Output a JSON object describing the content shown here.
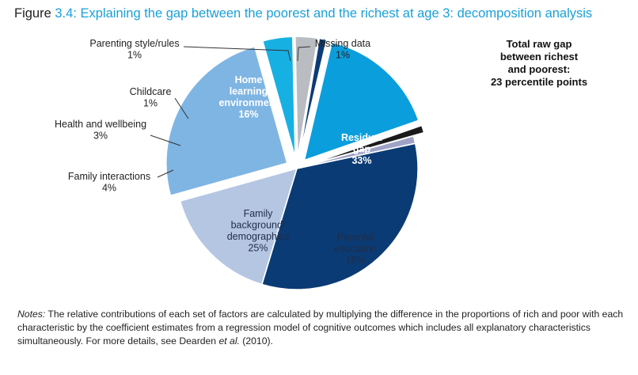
{
  "figure": {
    "label": "Figure",
    "number": "3.4:",
    "title": "Explaining the gap between the poorest and the richest at age 3: decomposition analysis"
  },
  "total_box": [
    "Total raw gap",
    "between richest",
    "and poorest:",
    "23 percentile points"
  ],
  "notes": {
    "label": "Notes:",
    "text1": " The relative contributions of each set of factors are calculated by multiplying the difference in the proportions of rich and poor with each characteristic by the coefficient estimates from a regression model of cognitive outcomes which includes all explanatory characteristics simultaneously. For more details, see Dearden ",
    "et_al": "et al.",
    "text2": " (2010)."
  },
  "colors": {
    "residual": "#0b3b74",
    "parental": "#b4c6e2",
    "background": "#7fb5e3",
    "interactions": "#17b0e3",
    "health": "#b9bcc1",
    "childcare": "#0b3b74",
    "home": "#0b9edc",
    "parenting": "#1a1a1a",
    "missing": "#9ea3c6"
  },
  "chart_data": {
    "type": "pie",
    "title": "Explaining the gap between the poorest and the richest at age 3: decomposition analysis",
    "unit": "%",
    "slices": [
      {
        "key": "residual",
        "label": [
          "Residual",
          "gap"
        ],
        "value": 33,
        "value_label": "33%",
        "color": "#0b3b74",
        "exploded": false
      },
      {
        "key": "parental",
        "label": [
          "Parental",
          "education"
        ],
        "value": 16,
        "value_label": "16%",
        "color": "#b4c6e2",
        "exploded": false
      },
      {
        "key": "background",
        "label": [
          "Family",
          "background/",
          "demographics"
        ],
        "value": 25,
        "value_label": "25%",
        "color": "#7fb5e3",
        "exploded": true
      },
      {
        "key": "interactions",
        "label": [
          "Family interactions"
        ],
        "value": 4,
        "value_label": "4%",
        "color": "#17b0e3",
        "exploded": true
      },
      {
        "key": "health",
        "label": [
          "Health and wellbeing"
        ],
        "value": 3,
        "value_label": "3%",
        "color": "#b9bcc1",
        "exploded": true
      },
      {
        "key": "childcare",
        "label": [
          "Childcare"
        ],
        "value": 1,
        "value_label": "1%",
        "color": "#0b3b74",
        "exploded": true
      },
      {
        "key": "home",
        "label": [
          "Home",
          "learning",
          "environment"
        ],
        "value": 16,
        "value_label": "16%",
        "color": "#0b9edc",
        "exploded": true
      },
      {
        "key": "parenting",
        "label": [
          "Parenting style/rules"
        ],
        "value": 1,
        "value_label": "1%",
        "color": "#1a1a1a",
        "exploded": true
      },
      {
        "key": "missing",
        "label": [
          "Missing data"
        ],
        "value": 1,
        "value_label": "1%",
        "color": "#9ea3c6",
        "exploded": false
      }
    ]
  }
}
